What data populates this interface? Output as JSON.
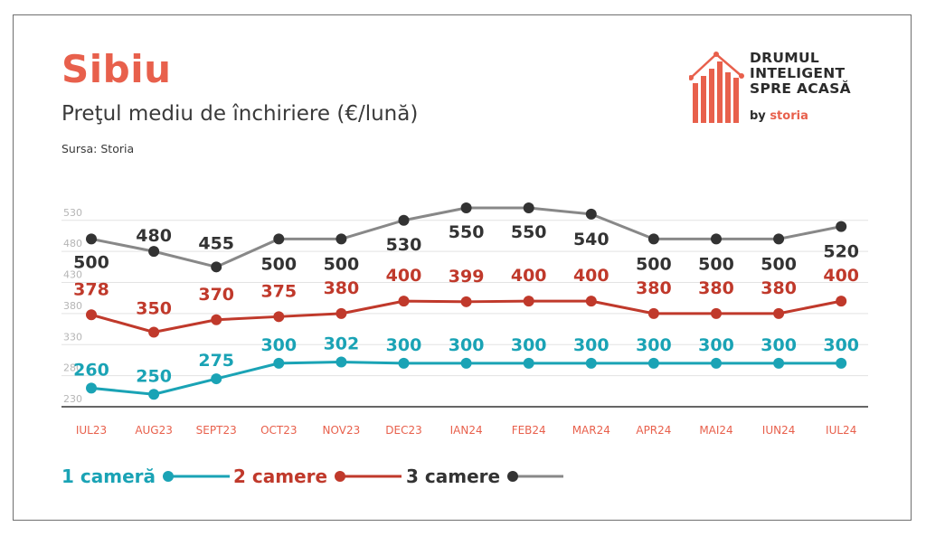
{
  "header": {
    "title": "Sibiu",
    "subtitle": "Preţul mediu de închiriere (€/lună)",
    "source": "Sursa: Storia"
  },
  "brand": {
    "line1": "DRUMUL",
    "line2": "INTELIGENT",
    "line3": "SPRE ACASĂ",
    "by": "by ",
    "storia": "storia"
  },
  "colors": {
    "title": "#e8604c",
    "axis_labels": "#e8604c",
    "one_room": "#1aa3b5",
    "two_rooms": "#c0392b",
    "three_rooms": "#888888",
    "three_rooms_label": "#333333"
  },
  "chart_data": {
    "type": "line",
    "title": "Preţul mediu de închiriere (€/lună)",
    "categories": [
      "IUL23",
      "AUG23",
      "SEPT23",
      "OCT23",
      "NOV23",
      "DEC23",
      "IAN24",
      "FEB24",
      "MAR24",
      "APR24",
      "MAI24",
      "IUN24",
      "IUL24"
    ],
    "yticks": [
      230,
      280,
      330,
      380,
      430,
      480,
      530
    ],
    "ylim": [
      230,
      570
    ],
    "grid": true,
    "legend": "bottom",
    "series": [
      {
        "name": "1 cameră",
        "values": [
          260,
          250,
          275,
          300,
          302,
          300,
          300,
          300,
          300,
          300,
          300,
          300,
          300
        ]
      },
      {
        "name": "2 camere",
        "values": [
          378,
          350,
          370,
          375,
          380,
          400,
          399,
          400,
          400,
          380,
          380,
          380,
          400
        ]
      },
      {
        "name": "3 camere",
        "values": [
          500,
          480,
          455,
          500,
          500,
          530,
          550,
          550,
          540,
          500,
          500,
          500,
          520
        ]
      }
    ]
  }
}
